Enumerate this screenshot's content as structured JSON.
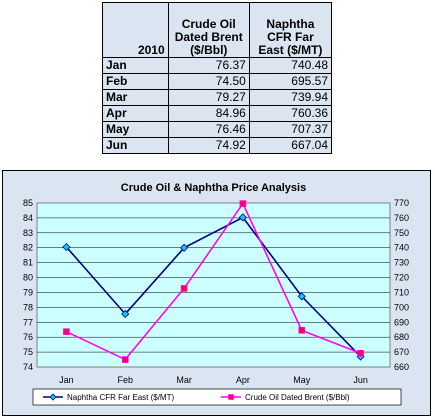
{
  "table": {
    "header": {
      "year": "2010",
      "col1": [
        "Crude Oil",
        "Dated Brent",
        "($/Bbl)"
      ],
      "col2": [
        "Naphtha",
        "CFR Far",
        "East ($/MT)"
      ]
    },
    "rows": [
      {
        "month": "Jan",
        "crude": "76.37",
        "naphtha": "740.48"
      },
      {
        "month": "Feb",
        "crude": "74.50",
        "naphtha": "695.57"
      },
      {
        "month": "Mar",
        "crude": "79.27",
        "naphtha": "739.94"
      },
      {
        "month": "Apr",
        "crude": "84.96",
        "naphtha": "760.36"
      },
      {
        "month": "May",
        "crude": "76.46",
        "naphtha": "707.37"
      },
      {
        "month": "Jun",
        "crude": "74.92",
        "naphtha": "667.04"
      }
    ]
  },
  "chart_data": {
    "type": "line",
    "title": "Crude Oil & Naphtha Price Analysis",
    "categories": [
      "Jan",
      "Feb",
      "Mar",
      "Apr",
      "May",
      "Jun"
    ],
    "y_left": {
      "min": 74,
      "max": 85,
      "step": 1,
      "ticks": [
        "74",
        "75",
        "76",
        "77",
        "78",
        "79",
        "80",
        "81",
        "82",
        "83",
        "84",
        "85"
      ]
    },
    "y_right": {
      "min": 660,
      "max": 770,
      "step": 10,
      "ticks": [
        "660",
        "670",
        "680",
        "690",
        "700",
        "710",
        "720",
        "730",
        "740",
        "750",
        "760",
        "770"
      ]
    },
    "grid": true,
    "legend_position": "bottom",
    "series": [
      {
        "name": "Naphtha CFR Far East ($/MT)",
        "axis": "right",
        "color": "#000080",
        "marker": "diamond",
        "marker_color": "#00ccff",
        "values": [
          740.48,
          695.57,
          739.94,
          760.36,
          707.37,
          667.04
        ]
      },
      {
        "name": "Crude Oil Dated Brent ($/Bbl)",
        "axis": "left",
        "color": "#ff00ff",
        "marker": "square",
        "marker_color": "#ff0066",
        "values": [
          76.37,
          74.5,
          79.27,
          84.96,
          76.46,
          74.92
        ]
      }
    ]
  }
}
